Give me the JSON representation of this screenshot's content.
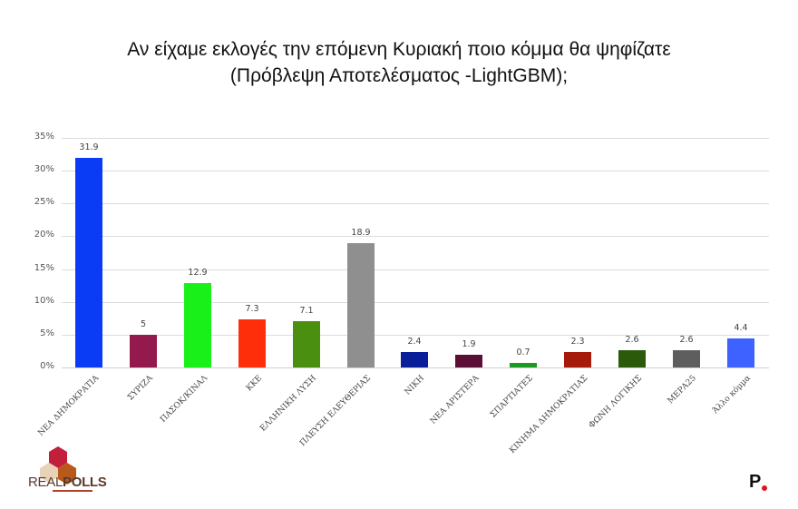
{
  "title": {
    "line1": "Αν είχαμε εκλογές την επόμενη Κυριακή ποιο κόμμα θα ψηφίζατε",
    "line2": "(Πρόβλεψη Αποτελέσματος -LightGBM);"
  },
  "chart_data": {
    "type": "bar",
    "title": "Αν είχαμε εκλογές την επόμενη Κυριακή ποιο κόμμα θα ψηφίζατε (Πρόβλεψη Αποτελέσματος -LightGBM);",
    "xlabel": "",
    "ylabel": "",
    "ylim": [
      0,
      35
    ],
    "yticks": [
      "0%",
      "5%",
      "10%",
      "15%",
      "20%",
      "25%",
      "30%",
      "35%"
    ],
    "grid": true,
    "legend": "none",
    "categories": [
      "ΝΕΑ ΔΗΜΟΚΡΑΤΙΑ",
      "ΣΥΡΙΖΑ",
      "ΠΑΣΟΚ/ΚΙΝΑΛ",
      "ΚΚΕ",
      "ΕΛΛΗΝΙΚΗ ΛΥΣΗ",
      "ΠΛΕΥΣΗ ΕΛΕΥΘΕΡΙΑΣ",
      "ΝΙΚΗ",
      "ΝΕΑ ΑΡΙΣΤΕΡΑ",
      "ΣΠΑΡΤΙΑΤΕΣ",
      "ΚΙΝΗΜΑ ΔΗΜΟΚΡΑΤΙΑΣ",
      "ΦΩΝΗ ΛΟΓΙΚΗΣ",
      "ΜΕΡΑ25",
      "Άλλο κόμμα"
    ],
    "values": [
      31.9,
      5,
      12.9,
      7.3,
      7.1,
      18.9,
      2.4,
      1.9,
      0.7,
      2.3,
      2.6,
      2.6,
      4.4
    ],
    "value_labels": [
      "31.9",
      "5",
      "12.9",
      "7.3",
      "7.1",
      "18.9",
      "2.4",
      "1.9",
      "0.7",
      "2.3",
      "2.6",
      "2.6",
      "4.4"
    ],
    "colors": [
      "#0a3cf5",
      "#941a4e",
      "#19f019",
      "#ff2e0a",
      "#4a8f10",
      "#8f8f8f",
      "#0a1e9a",
      "#5c0f35",
      "#1a9a22",
      "#a51a0a",
      "#2a5a0a",
      "#5e5e5e",
      "#3d62ff"
    ]
  },
  "logos": {
    "left_brand": "REAL",
    "left_brand_bold": "POLLS",
    "right_brand": "P"
  }
}
